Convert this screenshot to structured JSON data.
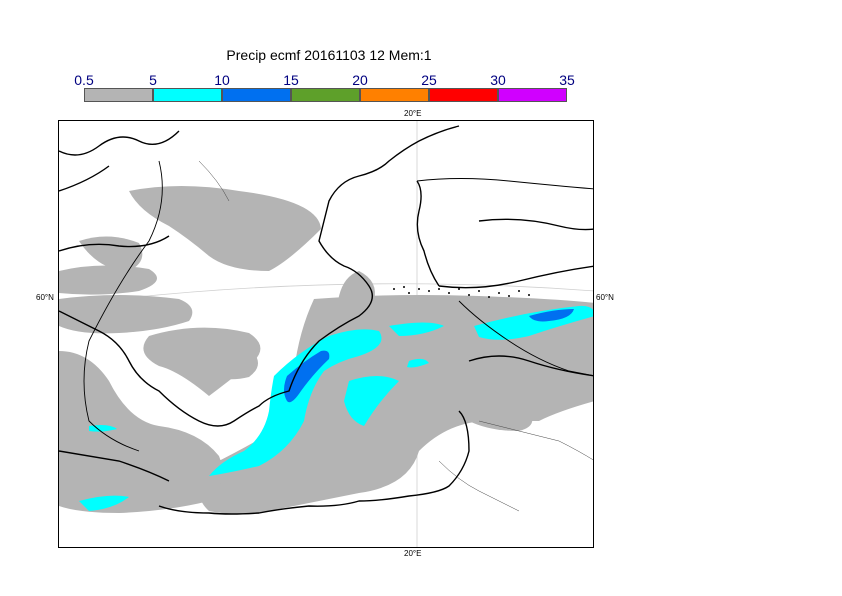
{
  "title": "Precip ecmf 20161103 12 Mem:1",
  "legend": {
    "labels": [
      "0.5",
      "5",
      "10",
      "15",
      "20",
      "25",
      "30",
      "35"
    ],
    "colors": [
      "#b4b4b4",
      "#00ffff",
      "#0070f0",
      "#5ea02a",
      "#ff8000",
      "#ff0000",
      "#d000ff"
    ]
  },
  "map_labels": {
    "lon_top": "20°E",
    "lon_bottom": "20°E",
    "lat_left": "60°N",
    "lat_right": "60°N"
  }
}
